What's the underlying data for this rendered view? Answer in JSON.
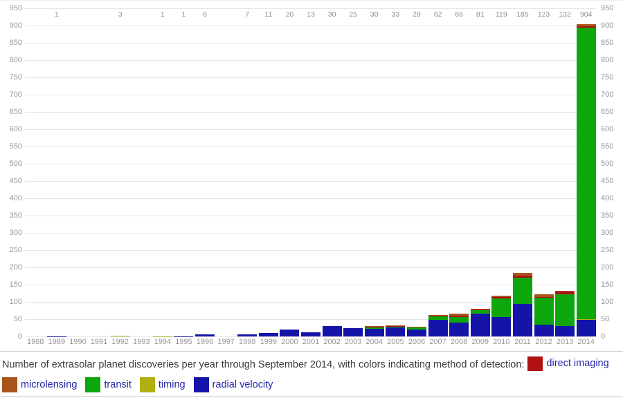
{
  "caption": {
    "text": "Number of extrasolar planet discoveries per year through September 2014, with colors indicating method of detection:",
    "legend": [
      {
        "label": "direct imaging",
        "color": "#b01212"
      },
      {
        "label": "microlensing",
        "color": "#a8541c"
      },
      {
        "label": "transit",
        "color": "#0da60d"
      },
      {
        "label": "timing",
        "color": "#b0b010"
      },
      {
        "label": "radial velocity",
        "color": "#1414a8"
      }
    ]
  },
  "chart_data": {
    "type": "bar",
    "stacked": true,
    "title": "Number of extrasolar planet discoveries per year through September 2014",
    "xlabel": "",
    "ylabel": "",
    "ylim": [
      0,
      950
    ],
    "ytick_step": 50,
    "grid": true,
    "y_axis_labels_both_sides": true,
    "bar_total_labels_shown": true,
    "categories": [
      "1988",
      "1989",
      "1990",
      "1991",
      "1992",
      "1993",
      "1994",
      "1995",
      "1996",
      "1997",
      "1998",
      "1999",
      "2000",
      "2001",
      "2002",
      "2003",
      "2004",
      "2005",
      "2006",
      "2007",
      "2008",
      "2009",
      "2010",
      "2011",
      "2012",
      "2013",
      "2014"
    ],
    "totals": [
      0,
      1,
      0,
      0,
      3,
      0,
      1,
      1,
      6,
      0,
      7,
      11,
      20,
      13,
      30,
      25,
      30,
      33,
      29,
      62,
      66,
      81,
      119,
      185,
      123,
      132,
      904
    ],
    "series": [
      {
        "name": "radial velocity",
        "color": "#1414a8",
        "values": [
          0,
          1,
          0,
          0,
          0,
          0,
          0,
          1,
          6,
          0,
          7,
          11,
          20,
          13,
          30,
          25,
          23,
          28,
          21,
          48,
          40,
          66,
          57,
          94,
          35,
          30,
          48
        ]
      },
      {
        "name": "timing",
        "color": "#b0b010",
        "values": [
          0,
          0,
          0,
          0,
          3,
          0,
          1,
          0,
          0,
          0,
          0,
          0,
          0,
          0,
          0,
          0,
          0,
          0,
          0,
          0,
          0,
          0,
          0,
          0,
          0,
          0,
          2
        ]
      },
      {
        "name": "transit",
        "color": "#0da60d",
        "values": [
          0,
          0,
          0,
          0,
          0,
          0,
          0,
          0,
          0,
          0,
          0,
          0,
          0,
          0,
          0,
          0,
          4,
          1,
          6,
          10,
          17,
          10,
          54,
          77,
          78,
          92,
          844
        ]
      },
      {
        "name": "direct imaging",
        "color": "#b01212",
        "values": [
          0,
          0,
          0,
          0,
          0,
          0,
          0,
          0,
          0,
          0,
          0,
          0,
          0,
          0,
          0,
          0,
          1,
          1,
          1,
          2,
          4,
          2,
          4,
          6,
          2,
          8,
          4
        ]
      },
      {
        "name": "microlensing",
        "color": "#a8541c",
        "values": [
          0,
          0,
          0,
          0,
          0,
          0,
          0,
          0,
          0,
          0,
          0,
          0,
          0,
          0,
          0,
          0,
          2,
          3,
          1,
          2,
          5,
          3,
          4,
          8,
          8,
          2,
          6
        ]
      }
    ]
  }
}
